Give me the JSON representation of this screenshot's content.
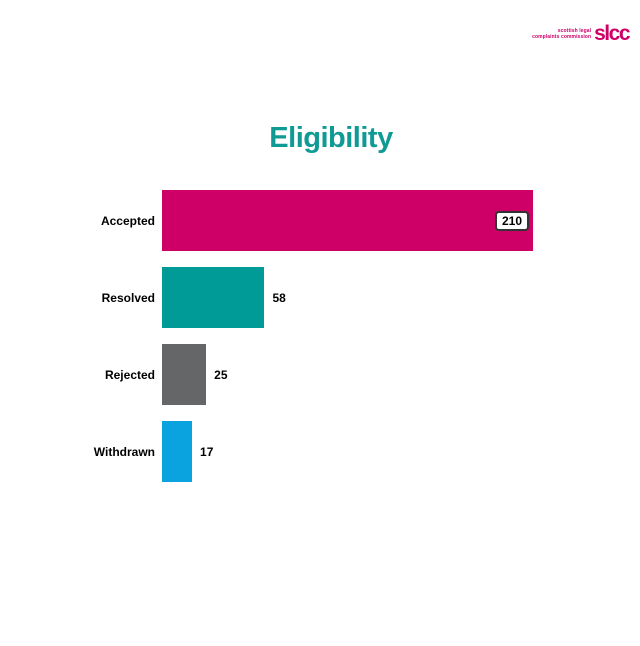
{
  "logo": {
    "small_text_line1": "scottish legal",
    "small_text_line2": "complaints commission",
    "brand": "slcc",
    "color": "#ce0068"
  },
  "chart_data": {
    "type": "bar",
    "orientation": "horizontal",
    "title": "Eligibility",
    "title_color": "#0f9a94",
    "categories": [
      "Accepted",
      "Resolved",
      "Rejected",
      "Withdrawn"
    ],
    "values": [
      210,
      58,
      25,
      17
    ],
    "bar_colors": [
      "#ce0068",
      "#009b96",
      "#656667",
      "#0aa2df"
    ],
    "value_placements": [
      "inside-box",
      "outside",
      "outside",
      "outside"
    ],
    "xlim": [
      0,
      210
    ],
    "grid": false,
    "legend": false,
    "axis_lines": false
  }
}
